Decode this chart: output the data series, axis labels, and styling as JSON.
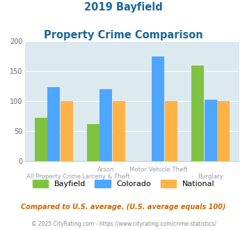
{
  "title_line1": "2019 Bayfield",
  "title_line2": "Property Crime Comparison",
  "cat_labels_top": [
    "",
    "Arson",
    "Motor Vehicle Theft",
    ""
  ],
  "cat_labels_bot": [
    "All Property Crime",
    "Larceny & Theft",
    "",
    "Burglary"
  ],
  "bayfield": [
    72,
    62,
    0,
    160
  ],
  "colorado": [
    123,
    120,
    175,
    103
  ],
  "national": [
    100,
    100,
    100,
    100
  ],
  "colors": {
    "bayfield": "#7fc241",
    "colorado": "#4da6ff",
    "national": "#ffb347"
  },
  "ylim": [
    0,
    200
  ],
  "yticks": [
    0,
    50,
    100,
    150,
    200
  ],
  "footnote1": "Compared to U.S. average. (U.S. average equals 100)",
  "footnote2": "© 2025 CityRating.com - https://www.cityrating.com/crime-statistics/",
  "background_color": "#dce9ef",
  "title_color": "#1a6699",
  "footnote1_color": "#cc6600",
  "footnote2_color": "#888888",
  "xtick_color": "#9999aa"
}
